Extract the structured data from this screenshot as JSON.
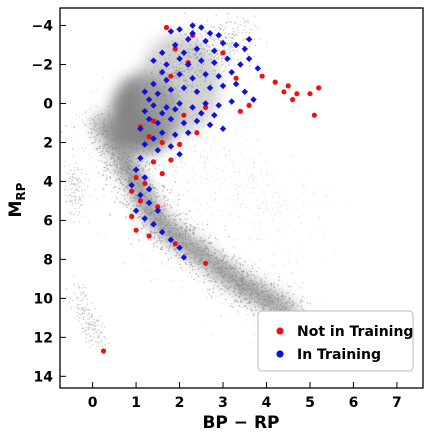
{
  "chart_data": {
    "type": "scatter",
    "title": "",
    "xlabel": "BP − RP",
    "ylabel_main": "M",
    "ylabel_sub": "RP",
    "xlim": [
      -0.75,
      7.6
    ],
    "ylim": [
      14.6,
      -4.9
    ],
    "y_inverted": true,
    "x_ticks": [
      0,
      1,
      2,
      3,
      4,
      5,
      6,
      7
    ],
    "y_ticks": [
      -4,
      -2,
      0,
      2,
      4,
      6,
      8,
      10,
      12,
      14
    ],
    "x_tick_labels": [
      "0",
      "1",
      "2",
      "3",
      "4",
      "5",
      "6",
      "7"
    ],
    "y_tick_labels": [
      "−4",
      "−2",
      "0",
      "2",
      "4",
      "6",
      "8",
      "10",
      "12",
      "14"
    ],
    "grid": false,
    "legend_position": "bottom-right",
    "background_population": {
      "description_color": "#9a9a9a",
      "main_sequence_ridge": [
        [
          0.2,
          1.0
        ],
        [
          0.5,
          2.0
        ],
        [
          0.8,
          3.2
        ],
        [
          1.0,
          4.0
        ],
        [
          1.2,
          5.0
        ],
        [
          1.5,
          6.0
        ],
        [
          1.9,
          6.8
        ],
        [
          2.4,
          7.6
        ],
        [
          3.0,
          8.6
        ],
        [
          3.5,
          9.4
        ],
        [
          4.0,
          10.0
        ],
        [
          4.5,
          10.7
        ]
      ],
      "red_clump_center": [
        1.2,
        0.5
      ],
      "white_dwarf_ridge": [
        [
          -0.4,
          9.5
        ],
        [
          -0.2,
          10.5
        ],
        [
          0.0,
          11.5
        ],
        [
          0.2,
          12.3
        ]
      ]
    },
    "series": [
      {
        "name": "In Training",
        "color": "#1111dd",
        "points": [
          [
            1.8,
            -3.7
          ],
          [
            2.0,
            -3.8
          ],
          [
            2.3,
            -4.0
          ],
          [
            2.5,
            -3.9
          ],
          [
            2.7,
            -3.6
          ],
          [
            2.9,
            -3.5
          ],
          [
            2.2,
            -3.3
          ],
          [
            2.6,
            -3.2
          ],
          [
            3.0,
            -3.1
          ],
          [
            3.3,
            -3.0
          ],
          [
            3.5,
            -2.8
          ],
          [
            2.8,
            -2.7
          ],
          [
            2.4,
            -2.8
          ],
          [
            1.9,
            -3.0
          ],
          [
            1.6,
            -2.6
          ],
          [
            1.4,
            -2.2
          ],
          [
            1.7,
            -2.0
          ],
          [
            2.0,
            -2.3
          ],
          [
            2.2,
            -2.0
          ],
          [
            2.5,
            -2.2
          ],
          [
            2.8,
            -2.1
          ],
          [
            3.1,
            -2.3
          ],
          [
            3.4,
            -2.0
          ],
          [
            3.6,
            -2.3
          ],
          [
            3.8,
            -1.8
          ],
          [
            3.2,
            -1.6
          ],
          [
            2.9,
            -1.4
          ],
          [
            2.6,
            -1.5
          ],
          [
            2.3,
            -1.3
          ],
          [
            2.0,
            -1.5
          ],
          [
            1.7,
            -1.2
          ],
          [
            1.4,
            -1.0
          ],
          [
            1.2,
            -0.6
          ],
          [
            1.5,
            -0.5
          ],
          [
            1.8,
            -0.7
          ],
          [
            2.1,
            -0.8
          ],
          [
            2.4,
            -0.6
          ],
          [
            2.7,
            -0.8
          ],
          [
            3.0,
            -0.9
          ],
          [
            3.3,
            -1.0
          ],
          [
            3.5,
            -0.6
          ],
          [
            3.7,
            -0.2
          ],
          [
            3.2,
            -0.1
          ],
          [
            2.9,
            0.1
          ],
          [
            2.6,
            0.0
          ],
          [
            2.3,
            0.2
          ],
          [
            2.0,
            0.0
          ],
          [
            1.7,
            0.2
          ],
          [
            1.4,
            0.1
          ],
          [
            1.2,
            0.4
          ],
          [
            1.3,
            0.8
          ],
          [
            1.5,
            1.0
          ],
          [
            1.8,
            0.8
          ],
          [
            2.1,
            1.0
          ],
          [
            2.4,
            0.9
          ],
          [
            2.7,
            1.1
          ],
          [
            3.0,
            1.3
          ],
          [
            2.2,
            1.5
          ],
          [
            1.9,
            1.6
          ],
          [
            1.6,
            1.5
          ],
          [
            1.4,
            1.8
          ],
          [
            1.2,
            2.1
          ],
          [
            1.5,
            2.4
          ],
          [
            1.8,
            2.2
          ],
          [
            2.0,
            2.6
          ],
          [
            1.1,
            2.8
          ],
          [
            1.0,
            3.4
          ],
          [
            1.2,
            3.8
          ],
          [
            0.9,
            4.2
          ],
          [
            1.1,
            4.7
          ],
          [
            1.3,
            5.1
          ],
          [
            1.0,
            5.5
          ],
          [
            1.2,
            5.9
          ],
          [
            1.4,
            6.2
          ],
          [
            1.6,
            6.6
          ],
          [
            1.8,
            7.0
          ],
          [
            2.0,
            7.4
          ],
          [
            2.1,
            7.9
          ],
          [
            1.5,
            5.5
          ],
          [
            1.3,
            4.4
          ],
          [
            1.1,
            1.3
          ],
          [
            1.6,
            0.5
          ],
          [
            2.5,
            0.5
          ],
          [
            2.8,
            0.6
          ],
          [
            1.9,
            0.3
          ],
          [
            1.3,
            -0.2
          ],
          [
            1.6,
            -1.6
          ],
          [
            2.1,
            -2.6
          ],
          [
            3.6,
            -3.3
          ],
          [
            2.3,
            -3.6
          ]
        ]
      },
      {
        "name": "Not in Training",
        "color": "#ee1111",
        "points": [
          [
            1.7,
            -3.9
          ],
          [
            2.3,
            -3.5
          ],
          [
            1.9,
            -2.8
          ],
          [
            3.0,
            -2.6
          ],
          [
            2.2,
            -2.1
          ],
          [
            1.8,
            -1.4
          ],
          [
            3.3,
            -1.3
          ],
          [
            3.9,
            -1.4
          ],
          [
            4.2,
            -1.1
          ],
          [
            4.5,
            -0.9
          ],
          [
            4.7,
            -0.5
          ],
          [
            4.6,
            -0.2
          ],
          [
            5.2,
            -0.8
          ],
          [
            5.0,
            -0.5
          ],
          [
            4.4,
            -0.6
          ],
          [
            3.6,
            0.1
          ],
          [
            3.4,
            0.4
          ],
          [
            2.6,
            0.2
          ],
          [
            2.1,
            0.6
          ],
          [
            1.4,
            0.9
          ],
          [
            1.1,
            1.2
          ],
          [
            1.3,
            1.7
          ],
          [
            1.6,
            2.0
          ],
          [
            2.0,
            2.1
          ],
          [
            1.8,
            2.9
          ],
          [
            1.4,
            3.0
          ],
          [
            1.0,
            3.8
          ],
          [
            1.2,
            4.1
          ],
          [
            0.9,
            4.5
          ],
          [
            1.1,
            5.0
          ],
          [
            1.5,
            5.3
          ],
          [
            0.9,
            5.8
          ],
          [
            1.0,
            6.5
          ],
          [
            1.3,
            6.8
          ],
          [
            1.9,
            7.2
          ],
          [
            2.6,
            8.2
          ],
          [
            0.25,
            12.7
          ],
          [
            5.1,
            0.6
          ],
          [
            1.6,
            3.6
          ],
          [
            2.4,
            1.5
          ]
        ]
      }
    ]
  }
}
